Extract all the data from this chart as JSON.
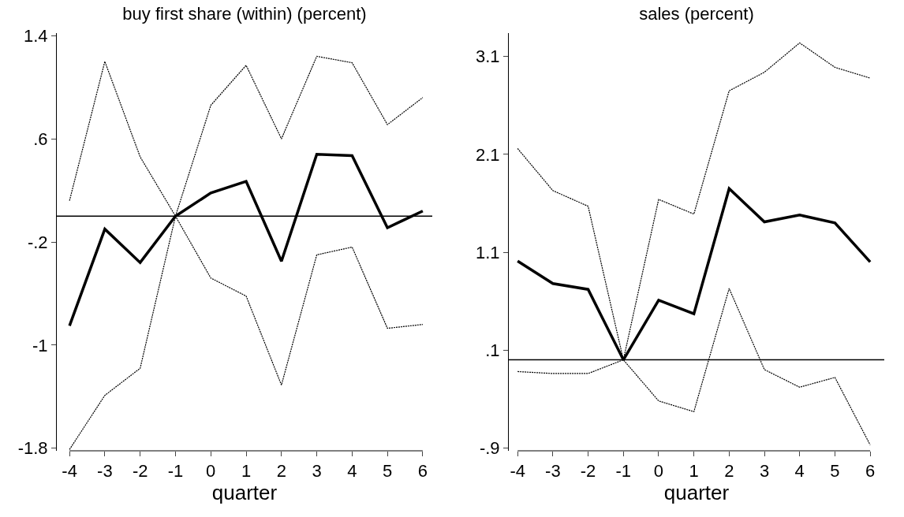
{
  "chart_data": [
    {
      "type": "line",
      "title": "buy first share (within) (percent)",
      "xlabel": "quarter",
      "x": [
        -4,
        -3,
        -2,
        -1,
        0,
        1,
        2,
        3,
        4,
        5,
        6
      ],
      "xlim": [
        -4.36,
        6.27
      ],
      "xticks": [
        -4,
        -3,
        -2,
        -1,
        0,
        1,
        2,
        3,
        4,
        5,
        6
      ],
      "ylim": [
        -1.82,
        1.42
      ],
      "yticks": [
        1.4,
        {
          "value": 0.6,
          "label": ".6"
        },
        {
          "value": -0.2,
          "label": "-.2"
        },
        -1,
        -1.8
      ],
      "marker": "none",
      "series": [
        {
          "color": "#000000",
          "line_style": "solid",
          "values": [
            -0.85,
            -0.1,
            -0.36,
            0,
            0.18,
            0.27,
            -0.35,
            0.48,
            0.47,
            -0.09,
            0.04
          ]
        },
        {
          "color": "#000000",
          "line_style": "dotted",
          "values": [
            0.12,
            1.2,
            0.46,
            0,
            0.86,
            1.17,
            0.6,
            1.24,
            1.19,
            0.71,
            0.92
          ]
        },
        {
          "color": "#000000",
          "line_style": "dotted",
          "values": [
            -1.81,
            -1.39,
            -1.18,
            0,
            -0.48,
            -0.62,
            -1.31,
            -0.3,
            -0.24,
            -0.87,
            -0.84
          ]
        }
      ],
      "ref_lines": [
        {
          "axis": "y",
          "value": 0,
          "color": "#000000"
        }
      ]
    },
    {
      "type": "line",
      "title": "sales (percent)",
      "xlabel": "quarter",
      "x": [
        -4,
        -3,
        -2,
        -1,
        0,
        1,
        2,
        3,
        4,
        5,
        6
      ],
      "xlim": [
        -4.25,
        6.4
      ],
      "xticks": [
        -4,
        -3,
        -2,
        -1,
        0,
        1,
        2,
        3,
        4,
        5,
        6
      ],
      "ylim": [
        -0.93,
        3.34
      ],
      "yticks": [
        3.1,
        2.1,
        1.1,
        {
          "value": 0.1,
          "label": ".1"
        },
        {
          "value": -0.9,
          "label": "-.9"
        }
      ],
      "marker": "none",
      "series": [
        {
          "color": "#000000",
          "line_style": "solid",
          "values": [
            1.01,
            0.78,
            0.72,
            0,
            0.61,
            0.47,
            1.75,
            1.41,
            1.48,
            1.4,
            1.0
          ]
        },
        {
          "color": "#000000",
          "line_style": "dotted",
          "values": [
            2.16,
            1.73,
            1.57,
            0,
            1.64,
            1.49,
            2.75,
            2.94,
            3.24,
            2.99,
            2.88
          ]
        },
        {
          "color": "#000000",
          "line_style": "dotted",
          "values": [
            -0.12,
            -0.14,
            -0.14,
            0,
            -0.42,
            -0.53,
            0.73,
            -0.1,
            -0.28,
            -0.18,
            -0.87
          ]
        }
      ],
      "ref_lines": [
        {
          "axis": "y",
          "value": 0,
          "color": "#000000"
        }
      ]
    }
  ]
}
